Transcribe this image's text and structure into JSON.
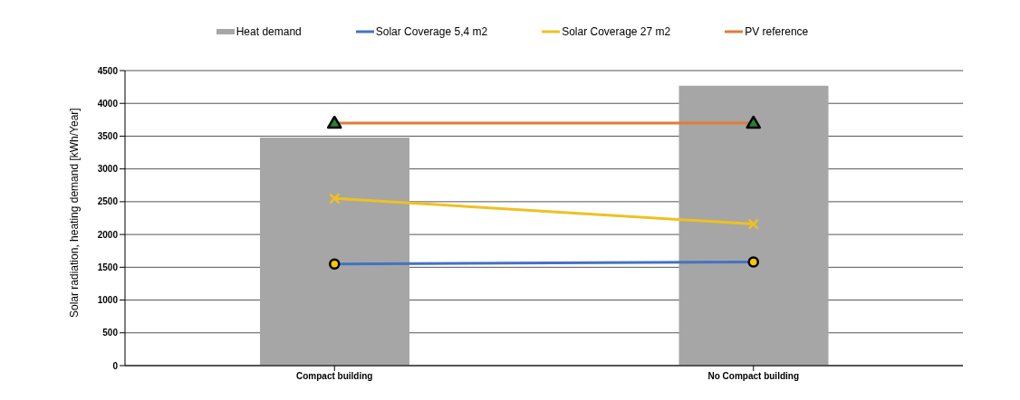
{
  "chart_data": {
    "type": "bar",
    "categories": [
      "Compact building",
      "No Compact building"
    ],
    "ylabel": "Solar radiation, heating demand [kWh/Year]",
    "ylim": [
      0,
      4500
    ],
    "yticks": [
      0,
      500,
      1000,
      1500,
      2000,
      2500,
      3000,
      3500,
      4000,
      4500
    ],
    "grid": "y",
    "legend": "top",
    "series": [
      {
        "name": "Heat demand",
        "color": "#a6a6a6",
        "values": [
          3480,
          4270
        ]
      },
      {
        "name": "Solar Coverage 5,4 m2",
        "type": "line",
        "color": "#4472c4",
        "marker": "circle",
        "values": [
          1550,
          1580
        ]
      },
      {
        "name": "Solar Coverage 27 m2",
        "type": "line",
        "color": "#f0c020",
        "marker": "cross",
        "values": [
          2550,
          2160
        ]
      },
      {
        "name": "PV reference",
        "type": "line",
        "color": "#e07b39",
        "marker": "triangle",
        "values": [
          3700,
          3700
        ]
      }
    ]
  }
}
